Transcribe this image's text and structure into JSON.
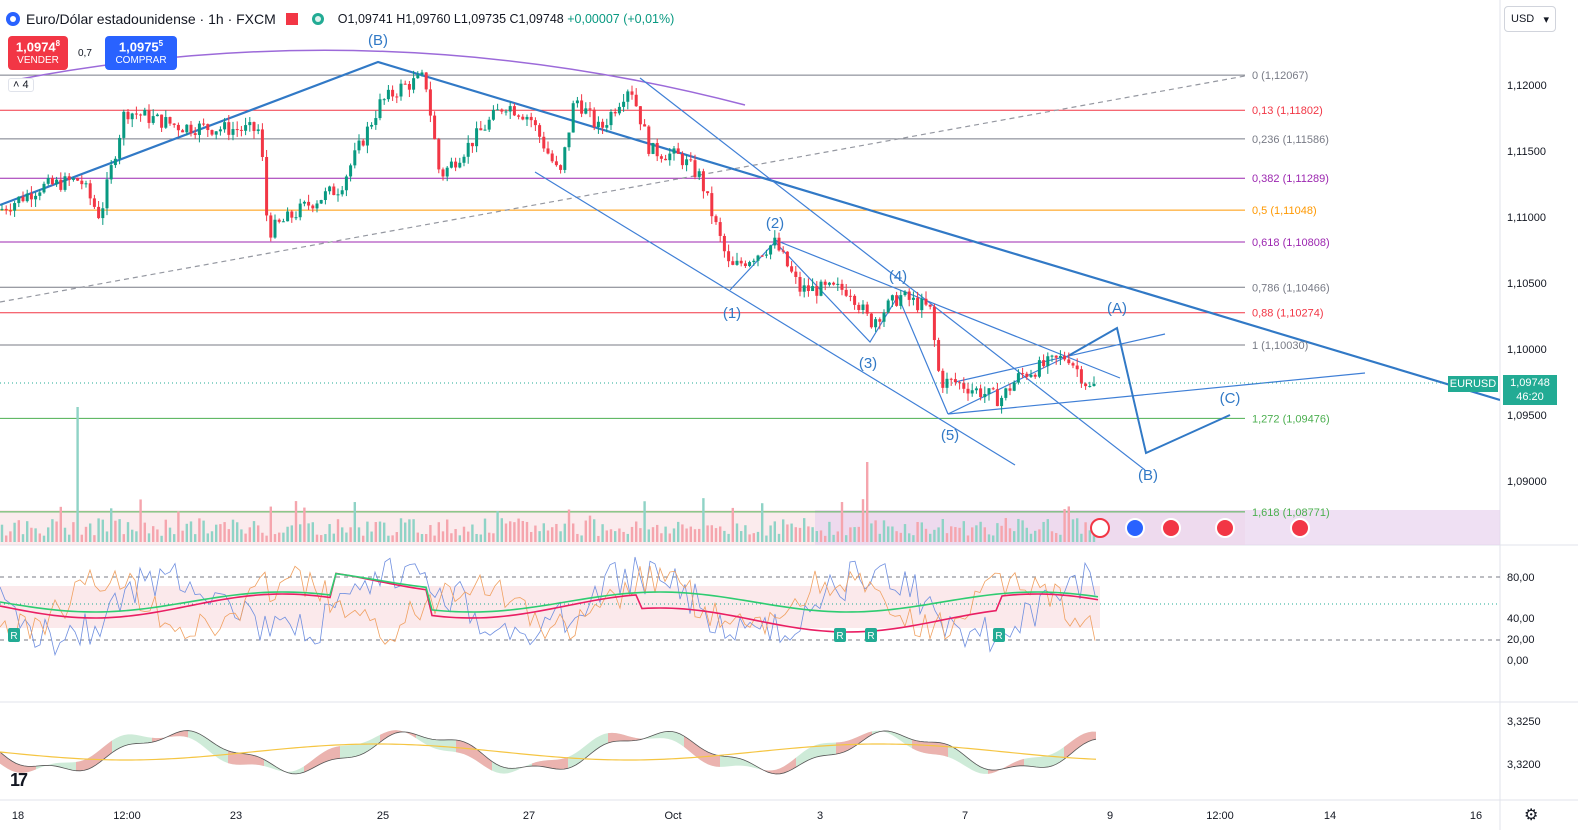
{
  "header": {
    "title": "Euro/Dólar estadounidense · 1h · FXCM",
    "ohlc": {
      "o": "O1,09741",
      "h": "H1,09760",
      "l": "L1,09735",
      "c": "C1,09748",
      "change": "+0,00007 (+0,01%)"
    }
  },
  "trade": {
    "sell_price": "1,0974",
    "sell_sup": "8",
    "sell_label": "VENDER",
    "spread": "0,7",
    "buy_price": "1,0975",
    "buy_sup": "5",
    "buy_label": "COMPRAR"
  },
  "indicators_collapsed_count": "4",
  "currency": {
    "label": "USD",
    "arrow": "▾"
  },
  "last_price": {
    "symbol": "EURUSD",
    "price": "1,09748",
    "countdown": "46:20"
  },
  "price_axis": [
    "1,12000",
    "1,11500",
    "1,11000",
    "1,10500",
    "1,10000",
    "1,09500",
    "1,09000"
  ],
  "rsi_axis": [
    "80,00",
    "40,00",
    "20,00",
    "0,00"
  ],
  "osc_axis": [
    "3,3250",
    "3,3200"
  ],
  "time_axis": [
    "18",
    "12:00",
    "23",
    "25",
    "27",
    "Oct",
    "3",
    "7",
    "9",
    "12:00",
    "14",
    "16"
  ],
  "fib_levels": [
    {
      "label": "0 (1,12067)",
      "value": 1.12067,
      "color": "#787b86"
    },
    {
      "label": "0,13 (1,11802)",
      "value": 1.11802,
      "color": "#f23645"
    },
    {
      "label": "0,236 (1,11586)",
      "value": 1.11586,
      "color": "#787b86"
    },
    {
      "label": "0,382 (1,11289)",
      "value": 1.11289,
      "color": "#9c27b0"
    },
    {
      "label": "0,5 (1,11048)",
      "value": 1.11048,
      "color": "#ff9800"
    },
    {
      "label": "0,618 (1,10808)",
      "value": 1.10808,
      "color": "#9c27b0"
    },
    {
      "label": "0,786 (1,10466)",
      "value": 1.10466,
      "color": "#787b86"
    },
    {
      "label": "0,88 (1,10274)",
      "value": 1.10274,
      "color": "#f23645"
    },
    {
      "label": "1 (1,10030)",
      "value": 1.1003,
      "color": "#787b86"
    },
    {
      "label": "1,272 (1,09476)",
      "value": 1.09476,
      "color": "#4caf50"
    },
    {
      "label": "1,618 (1,08771)",
      "value": 1.08771,
      "color": "#4caf50"
    }
  ],
  "wave_labels": [
    "(B)",
    "(1)",
    "(2)",
    "(3)",
    "(4)",
    "(5)",
    "(A)",
    "(B)",
    "(C)"
  ],
  "rsi_markers": [
    "R",
    "R",
    "R",
    "R"
  ],
  "colors": {
    "up": "#089981",
    "down": "#f23645",
    "wave": "#4a90d9",
    "accent": "#2962ff",
    "last": "#22ab94"
  },
  "icons": [
    "symbol-icon",
    "flag-icon",
    "status-dot-icon",
    "event-icons",
    "tradingview-logo-icon",
    "settings-gear-icon"
  ]
}
